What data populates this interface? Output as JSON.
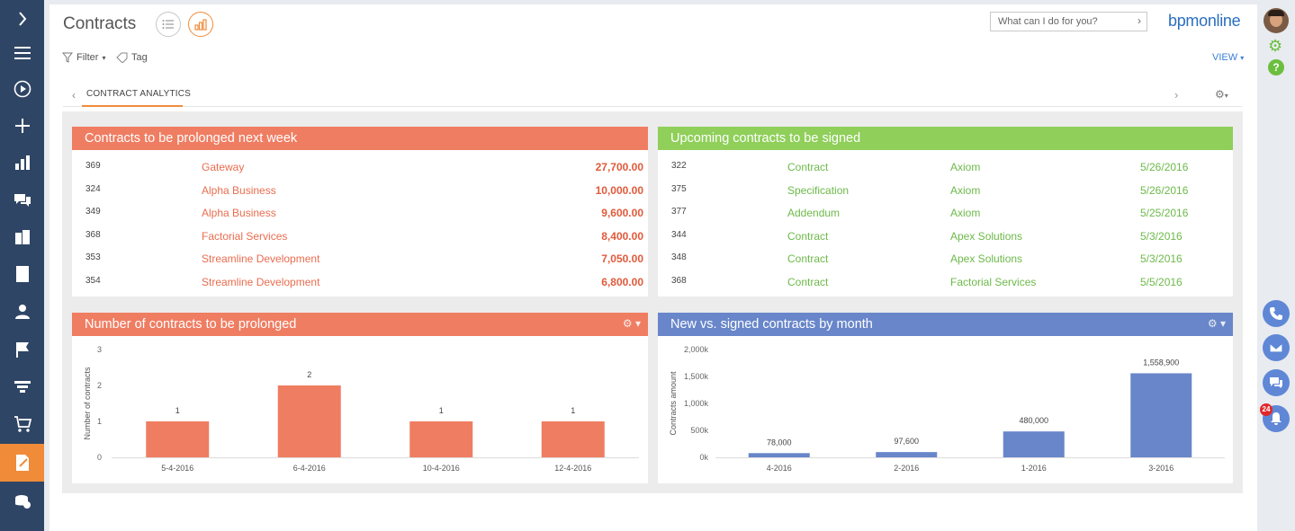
{
  "app": {
    "page_title": "Contracts",
    "logo": "bpmonline",
    "search_placeholder": "What can I do for you?",
    "filter_label": "Filter",
    "tag_label": "Tag",
    "view_label": "VIEW",
    "tab_label": "CONTRACT ANALYTICS",
    "notification_count": "24",
    "colors": {
      "nav_bg": "#2f4565",
      "accent_orange": "#f08b3a",
      "red_header": "#ef7d62",
      "green_header": "#8fcf5a",
      "blue_header": "#6886c9"
    }
  },
  "leftnav": {
    "items": [
      {
        "icon": "chevron-right-icon"
      },
      {
        "icon": "menu-icon"
      },
      {
        "icon": "play-icon"
      },
      {
        "icon": "plus-icon"
      },
      {
        "icon": "bar-chart-icon"
      },
      {
        "icon": "chat-icon"
      },
      {
        "icon": "accounts-icon"
      },
      {
        "icon": "building-icon"
      },
      {
        "icon": "person-icon"
      },
      {
        "icon": "flag-icon"
      },
      {
        "icon": "funnel-icon"
      },
      {
        "icon": "cart-icon"
      },
      {
        "icon": "contract-icon",
        "active": true
      },
      {
        "icon": "coins-icon"
      }
    ]
  },
  "widgets": {
    "prolonged_next_week": {
      "title": "Contracts to be prolonged next week",
      "rows": [
        {
          "number": "369",
          "account": "Gateway",
          "amount": "27,700.00"
        },
        {
          "number": "324",
          "account": "Alpha Business",
          "amount": "10,000.00"
        },
        {
          "number": "349",
          "account": "Alpha Business",
          "amount": "9,600.00"
        },
        {
          "number": "368",
          "account": "Factorial Services",
          "amount": "8,400.00"
        },
        {
          "number": "353",
          "account": "Streamline Development",
          "amount": "7,050.00"
        },
        {
          "number": "354",
          "account": "Streamline Development",
          "amount": "6,800.00"
        }
      ]
    },
    "upcoming_signed": {
      "title": "Upcoming contracts to be signed",
      "rows": [
        {
          "number": "322",
          "type": "Contract",
          "account": "Axiom",
          "date": "5/26/2016"
        },
        {
          "number": "375",
          "type": "Specification",
          "account": "Axiom",
          "date": "5/26/2016"
        },
        {
          "number": "377",
          "type": "Addendum",
          "account": "Axiom",
          "date": "5/25/2016"
        },
        {
          "number": "344",
          "type": "Contract",
          "account": "Apex Solutions",
          "date": "5/3/2016"
        },
        {
          "number": "348",
          "type": "Contract",
          "account": "Apex Solutions",
          "date": "5/3/2016"
        },
        {
          "number": "368",
          "type": "Contract",
          "account": "Factorial Services",
          "date": "5/5/2016"
        }
      ]
    }
  },
  "chart_data": [
    {
      "type": "bar",
      "title": "Number of contracts to be prolonged",
      "xlabel": "",
      "ylabel": "Number of contracts",
      "categories": [
        "5-4-2016",
        "6-4-2016",
        "10-4-2016",
        "12-4-2016"
      ],
      "values": [
        1,
        2,
        1,
        1
      ],
      "value_labels": [
        "1",
        "2",
        "1",
        "1"
      ],
      "yticks": [
        "0",
        "1",
        "2",
        "3"
      ],
      "ylim": [
        0,
        3
      ],
      "grid": false,
      "color": "#ef7d62"
    },
    {
      "type": "bar",
      "title": "New vs. signed contracts by month",
      "xlabel": "",
      "ylabel": "Contracts amount",
      "categories": [
        "4-2016",
        "2-2016",
        "1-2016",
        "3-2016"
      ],
      "values": [
        78000,
        97600,
        480000,
        1558900
      ],
      "value_labels": [
        "78,000",
        "97,600",
        "480,000",
        "1,558,900"
      ],
      "yticks": [
        "0k",
        "500k",
        "1,000k",
        "1,500k",
        "2,000k"
      ],
      "ylim": [
        0,
        2000000
      ],
      "grid": false,
      "color": "#6886c9"
    }
  ]
}
